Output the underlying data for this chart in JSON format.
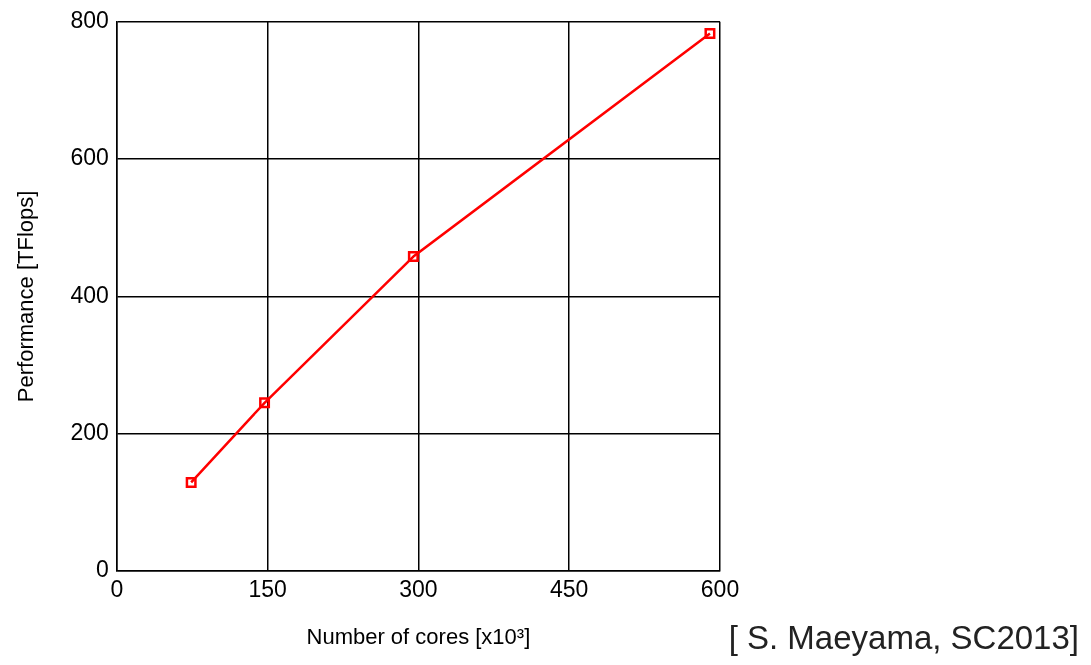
{
  "chart_data": {
    "type": "line",
    "xlabel": "Number of cores [x10³]",
    "ylabel": "Performance [TFlops]",
    "x": [
      74,
      147,
      295,
      590
    ],
    "series": [
      {
        "color": "#ff0000",
        "values": [
          129,
          245,
          458,
          783
        ]
      }
    ],
    "xlim": [
      0,
      600
    ],
    "xticks": [
      0,
      150,
      300,
      450,
      600
    ],
    "ylim": [
      0,
      800
    ],
    "yticks": [
      0,
      200,
      400,
      600,
      800
    ],
    "grid": true,
    "legend": false,
    "marker": "square",
    "line_style": "solid",
    "annotations": [
      "[ S. Maeyama, SC2013]"
    ]
  }
}
